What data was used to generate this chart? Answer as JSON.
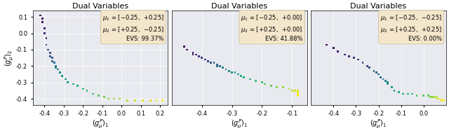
{
  "title": "Dual Variables",
  "xlabel": "$(g_\\mu^P)_1$",
  "ylabel": "$(g_\\mu^P)_2$",
  "bg_color": "#e8eaf0",
  "panels": [
    {
      "mu1_text": "$\\mu_1$ = [$-$0.25,  $+$0.25]",
      "mu2_text": "$\\mu_2$ = [$+$0.25,  $-$0.25]",
      "evs": "EVS: 99.37%",
      "xlim": [
        -0.46,
        0.24
      ],
      "ylim": [
        -0.44,
        0.14
      ],
      "xticks": [
        -0.4,
        -0.3,
        -0.2,
        -0.1,
        0.0,
        0.1,
        0.2
      ],
      "yticks": [
        -0.4,
        -0.3,
        -0.2,
        -0.1,
        0.0,
        0.1
      ],
      "show_ylabel": true,
      "points_x": [
        -0.42,
        -0.41,
        -0.41,
        -0.4,
        -0.4,
        -0.39,
        -0.39,
        -0.38,
        -0.37,
        -0.37,
        -0.36,
        -0.36,
        -0.35,
        -0.34,
        -0.34,
        -0.33,
        -0.32,
        -0.31,
        -0.29,
        -0.28,
        -0.25,
        -0.23,
        -0.2,
        -0.18,
        -0.15,
        -0.12,
        -0.09,
        -0.07,
        -0.04,
        -0.01,
        0.03,
        0.07,
        0.11,
        0.15,
        0.18,
        0.21
      ],
      "points_y": [
        0.11,
        0.09,
        0.07,
        0.03,
        0.0,
        -0.03,
        -0.07,
        -0.1,
        -0.12,
        -0.14,
        -0.15,
        -0.17,
        -0.18,
        -0.2,
        -0.21,
        -0.22,
        -0.24,
        -0.26,
        -0.28,
        -0.3,
        -0.31,
        -0.32,
        -0.34,
        -0.35,
        -0.37,
        -0.38,
        -0.39,
        -0.4,
        -0.4,
        -0.4,
        -0.41,
        -0.41,
        -0.41,
        -0.41,
        -0.41,
        -0.41
      ],
      "colors_norm": [
        0.0,
        0.03,
        0.06,
        0.09,
        0.12,
        0.15,
        0.18,
        0.21,
        0.24,
        0.27,
        0.3,
        0.33,
        0.36,
        0.39,
        0.42,
        0.45,
        0.48,
        0.51,
        0.54,
        0.57,
        0.6,
        0.63,
        0.66,
        0.69,
        0.72,
        0.75,
        0.78,
        0.81,
        0.84,
        0.87,
        0.9,
        0.93,
        0.95,
        0.97,
        0.98,
        1.0
      ]
    },
    {
      "mu1_text": "$\\mu_1$ = [$-$0.25,  $+$0.00]",
      "mu2_text": "$\\mu_2$ = [$+$0.25,  $+$0.00]",
      "evs": "EVS: 41.88%",
      "xlim": [
        -0.5,
        -0.05
      ],
      "ylim": [
        -0.44,
        0.14
      ],
      "xticks": [
        -0.4,
        -0.3,
        -0.2,
        -0.1
      ],
      "yticks": [],
      "show_ylabel": false,
      "points_x": [
        -0.46,
        -0.45,
        -0.43,
        -0.43,
        -0.42,
        -0.41,
        -0.4,
        -0.39,
        -0.38,
        -0.37,
        -0.36,
        -0.35,
        -0.35,
        -0.34,
        -0.33,
        -0.32,
        -0.31,
        -0.3,
        -0.29,
        -0.28,
        -0.27,
        -0.26,
        -0.24,
        -0.22,
        -0.2,
        -0.19,
        -0.17,
        -0.15,
        -0.13,
        -0.11,
        -0.1,
        -0.09,
        -0.08,
        -0.08,
        -0.08,
        -0.08
      ],
      "points_y": [
        -0.08,
        -0.1,
        -0.12,
        -0.13,
        -0.13,
        -0.14,
        -0.15,
        -0.16,
        -0.17,
        -0.18,
        -0.18,
        -0.19,
        -0.2,
        -0.2,
        -0.21,
        -0.22,
        -0.23,
        -0.24,
        -0.24,
        -0.25,
        -0.26,
        -0.27,
        -0.28,
        -0.29,
        -0.3,
        -0.31,
        -0.32,
        -0.33,
        -0.33,
        -0.34,
        -0.35,
        -0.35,
        -0.35,
        -0.36,
        -0.37,
        -0.38
      ],
      "colors_norm": [
        0.0,
        0.03,
        0.06,
        0.09,
        0.12,
        0.15,
        0.18,
        0.21,
        0.24,
        0.27,
        0.3,
        0.33,
        0.36,
        0.39,
        0.42,
        0.45,
        0.48,
        0.51,
        0.54,
        0.57,
        0.6,
        0.63,
        0.66,
        0.69,
        0.72,
        0.75,
        0.78,
        0.81,
        0.84,
        0.87,
        0.9,
        0.93,
        0.95,
        0.97,
        0.98,
        1.0
      ]
    },
    {
      "mu1_text": "$\\mu_1$ = [$-$0.25,  $-$0.25]",
      "mu2_text": "$\\mu_2$ = [$+$0.25,  $+$0.25]",
      "evs": "EVS: 0.00%",
      "xlim": [
        -0.5,
        0.1
      ],
      "ylim": [
        -0.44,
        0.14
      ],
      "xticks": [
        -0.4,
        -0.3,
        -0.2,
        -0.1,
        0.0
      ],
      "yticks": [],
      "show_ylabel": false,
      "points_x": [
        -0.43,
        -0.4,
        -0.38,
        -0.35,
        -0.33,
        -0.31,
        -0.29,
        -0.27,
        -0.25,
        -0.24,
        -0.22,
        -0.21,
        -0.2,
        -0.19,
        -0.18,
        -0.17,
        -0.16,
        -0.16,
        -0.14,
        -0.13,
        -0.11,
        -0.09,
        -0.07,
        -0.05,
        -0.03,
        0.0,
        0.02,
        0.03,
        0.04,
        0.05,
        0.06,
        0.06,
        0.07,
        0.07,
        0.08,
        0.09
      ],
      "points_y": [
        -0.07,
        -0.09,
        -0.11,
        -0.13,
        -0.14,
        -0.15,
        -0.16,
        -0.18,
        -0.2,
        -0.21,
        -0.23,
        -0.24,
        -0.25,
        -0.27,
        -0.28,
        -0.29,
        -0.3,
        -0.31,
        -0.33,
        -0.35,
        -0.36,
        -0.37,
        -0.37,
        -0.37,
        -0.38,
        -0.38,
        -0.38,
        -0.39,
        -0.39,
        -0.39,
        -0.39,
        -0.4,
        -0.4,
        -0.4,
        -0.41,
        -0.41
      ],
      "colors_norm": [
        0.0,
        0.03,
        0.06,
        0.09,
        0.12,
        0.15,
        0.18,
        0.21,
        0.24,
        0.27,
        0.3,
        0.33,
        0.36,
        0.39,
        0.42,
        0.45,
        0.48,
        0.51,
        0.54,
        0.57,
        0.6,
        0.63,
        0.66,
        0.69,
        0.72,
        0.75,
        0.78,
        0.81,
        0.84,
        0.87,
        0.9,
        0.93,
        0.95,
        0.97,
        0.98,
        1.0
      ]
    }
  ],
  "annotation_bg": "#f5e6c8",
  "annotation_edge": "#c8b890",
  "marker_size": 4,
  "font_size": 7
}
